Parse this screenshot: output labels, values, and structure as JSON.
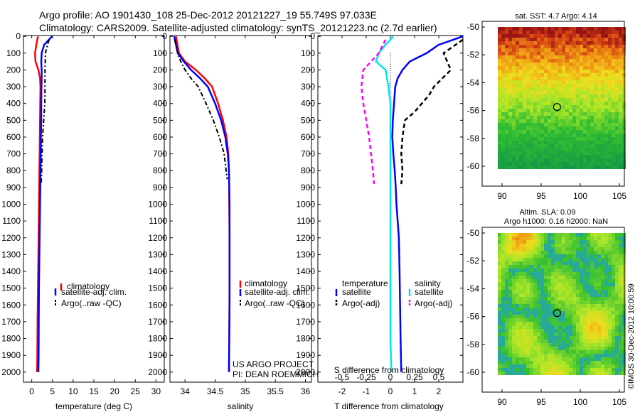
{
  "header": {
    "line1": "Argo profile: AO 1901430_108 25-Dec-2012 20121227_19 55.749S 97.033E",
    "line2": "Climatology: CARS2009. Satellite-adjusted climatology: synTS_20121223.nc (2.7d earlier)"
  },
  "depth_ticks": [
    "0",
    "100",
    "200",
    "300",
    "400",
    "500",
    "600",
    "700",
    "800",
    "900",
    "1000",
    "1100",
    "1200",
    "1300",
    "1400",
    "1500",
    "1600",
    "1700",
    "1800",
    "1900",
    "2000"
  ],
  "colors": {
    "climatology": "#ff0000",
    "satellite": "#0000ff",
    "argo": "#000000",
    "cyan": "#00e5ee",
    "magenta": "#ff00ff",
    "axis": "#000000"
  },
  "chart_data": [
    {
      "type": "line",
      "xlabel": "temperature (deg C)",
      "ylabel": "",
      "xlim": [
        -2,
        32
      ],
      "ylim": [
        2060,
        -5
      ],
      "x_ticks": [
        0,
        5,
        10,
        15,
        20,
        25,
        30
      ],
      "y_ticks": [
        0,
        100,
        200,
        300,
        400,
        500,
        600,
        700,
        800,
        900,
        1000,
        1100,
        1200,
        1300,
        1400,
        1500,
        1600,
        1700,
        1800,
        1900,
        2000
      ],
      "legend": {
        "position": "bottom-right",
        "entries": [
          "climatology",
          "satellite-adj. clim.",
          "Argo(..raw -QC)"
        ]
      },
      "series": [
        {
          "name": "climatology",
          "color": "#ff0000",
          "dash": "",
          "width": 2.5,
          "x": [
            1.5,
            1.1,
            0.8,
            0.9,
            1.6,
            2.0,
            2.1,
            2.05,
            2.0,
            1.95,
            1.9,
            1.85,
            1.8,
            1.75,
            1.7,
            1.65,
            1.6,
            1.5,
            1.45,
            1.4,
            1.35,
            1.3
          ],
          "y": [
            0,
            50,
            100,
            150,
            200,
            250,
            300,
            400,
            500,
            600,
            700,
            800,
            900,
            1000,
            1100,
            1200,
            1300,
            1500,
            1600,
            1700,
            1900,
            2000
          ]
        },
        {
          "name": "satellite-adj. clim.",
          "color": "#0000ff",
          "dash": "",
          "width": 2.5,
          "x": [
            4.9,
            3.0,
            2.4,
            2.3,
            2.4,
            2.4,
            2.35,
            2.3,
            2.3,
            2.2,
            2.15,
            2.1,
            2.05,
            2.0,
            1.95,
            1.9,
            1.8,
            1.75,
            1.7,
            1.65,
            1.6
          ],
          "y": [
            0,
            50,
            100,
            150,
            200,
            250,
            300,
            400,
            500,
            600,
            700,
            800,
            900,
            1000,
            1100,
            1200,
            1400,
            1500,
            1700,
            1900,
            2000
          ]
        },
        {
          "name": "Argo(..raw -QC)",
          "color": "#000000",
          "dash": "6,3,2,3",
          "width": 2,
          "x": [
            4.2,
            3.8,
            3.3,
            3.2,
            3.2,
            3.15,
            2.9,
            2.6,
            2.5,
            2.4,
            2.3
          ],
          "y": [
            20,
            50,
            100,
            200,
            300,
            400,
            500,
            600,
            700,
            800,
            880
          ]
        }
      ]
    },
    {
      "type": "line",
      "xlabel": "salinity",
      "ylabel": "",
      "xlim": [
        33.75,
        36.1
      ],
      "ylim": [
        2060,
        -5
      ],
      "x_ticks": [
        34,
        34.5,
        35,
        35.5,
        36
      ],
      "y_ticks": [
        0,
        100,
        200,
        300,
        400,
        500,
        600,
        700,
        800,
        900,
        1000,
        1100,
        1200,
        1300,
        1400,
        1500,
        1600,
        1700,
        1800,
        1900,
        2000
      ],
      "legend": {
        "position": "bottom-right",
        "entries": [
          "climatology",
          "satellite-adj. clim.",
          "Argo(..raw -QC)"
        ]
      },
      "series": [
        {
          "name": "climatology",
          "color": "#ff0000",
          "dash": "",
          "width": 2.5,
          "x": [
            33.85,
            33.9,
            34.0,
            34.18,
            34.33,
            34.45,
            34.55,
            34.63,
            34.69,
            34.72,
            34.73,
            34.735,
            34.74,
            34.74,
            34.735,
            34.73
          ],
          "y": [
            0,
            100,
            150,
            200,
            250,
            300,
            400,
            500,
            600,
            700,
            800,
            1000,
            1200,
            1500,
            1800,
            2000
          ]
        },
        {
          "name": "satellite-adj. clim.",
          "color": "#0000ff",
          "dash": "",
          "width": 2.5,
          "x": [
            33.82,
            33.88,
            33.98,
            34.1,
            34.25,
            34.38,
            34.5,
            34.6,
            34.67,
            34.71,
            34.73,
            34.74,
            34.74,
            34.74,
            34.73
          ],
          "y": [
            0,
            100,
            150,
            200,
            250,
            300,
            400,
            500,
            600,
            700,
            800,
            1000,
            1300,
            1600,
            2000
          ]
        },
        {
          "name": "Argo(..raw -QC)",
          "color": "#000000",
          "dash": "6,3,2,3",
          "width": 2,
          "x": [
            33.83,
            33.88,
            33.93,
            34.0,
            34.1,
            34.22,
            34.35,
            34.47,
            34.57,
            34.65,
            34.7
          ],
          "y": [
            20,
            100,
            150,
            200,
            250,
            300,
            400,
            500,
            600,
            700,
            850
          ]
        }
      ]
    },
    {
      "type": "line",
      "xlabel": "T difference from climatology",
      "xlabel_top": "S difference from climatology",
      "ylabel": "",
      "xlim": [
        -3,
        3
      ],
      "x2lim": [
        -0.75,
        0.75
      ],
      "ylim": [
        2060,
        -5
      ],
      "x_ticks": [
        -2,
        -1,
        0,
        1,
        2
      ],
      "x2_ticks": [
        "-0.5",
        "-0.25",
        "0",
        "0.25",
        "0.5"
      ],
      "y_ticks": [
        0,
        100,
        200,
        300,
        400,
        500,
        600,
        700,
        800,
        900,
        1000,
        1100,
        1200,
        1300,
        1400,
        1500,
        1600,
        1700,
        1800,
        1900,
        2000
      ],
      "legend": {
        "position": "bottom",
        "groups": [
          "temperature",
          "salinity"
        ],
        "entries": [
          "satellite",
          "Argo(-adj)",
          "satellite",
          "Argo(-adj)"
        ]
      },
      "series": [
        {
          "name": "temperature satellite",
          "color": "#0000ff",
          "dash": "",
          "width": 2.5,
          "x": [
            3.3,
            2.0,
            1.5,
            0.8,
            0.5,
            0.3,
            0.2,
            0.15,
            0.1,
            0.08,
            0.12,
            0.18,
            0.22,
            0.25,
            0.3,
            0.35,
            0.38,
            0.4,
            0.42,
            0.45
          ],
          "y": [
            0,
            50,
            100,
            150,
            200,
            250,
            300,
            400,
            500,
            600,
            700,
            800,
            900,
            1000,
            1100,
            1200,
            1400,
            1600,
            1800,
            2000
          ]
        },
        {
          "name": "temperature Argo(-adj)",
          "color": "#000000",
          "dash": "6,4",
          "width": 2.5,
          "x": [
            3.0,
            2.2,
            2.5,
            1.8,
            1.6,
            1.3,
            1.0,
            0.6,
            0.5,
            0.45,
            0.5,
            0.45
          ],
          "y": [
            20,
            100,
            200,
            300,
            350,
            400,
            450,
            500,
            600,
            700,
            800,
            880
          ]
        },
        {
          "name": "salinity satellite",
          "color": "#00e5ee",
          "dash": "",
          "width": 2.5,
          "x": [
            0.03,
            -0.05,
            -0.12,
            -0.15,
            -0.05,
            -0.02,
            0.0,
            0.0,
            0.0,
            0.0,
            0.0,
            0.0,
            0.0,
            0.0,
            0.01
          ],
          "y": [
            0,
            50,
            100,
            150,
            200,
            300,
            400,
            500,
            600,
            800,
            1000,
            1300,
            1600,
            1800,
            2000
          ]
        },
        {
          "name": "salinity Argo(-adj)",
          "color": "#ff00ff",
          "dash": "6,4",
          "width": 2.5,
          "x": [
            -0.05,
            -0.12,
            -0.2,
            -0.28,
            -0.3,
            -0.28,
            -0.25,
            -0.22,
            -0.2,
            -0.18,
            -0.17
          ],
          "y": [
            20,
            100,
            150,
            200,
            300,
            400,
            500,
            600,
            700,
            800,
            880
          ]
        }
      ]
    }
  ],
  "legend1": {
    "climatology": "climatology",
    "satellite": "satellite-adj. clim.",
    "argo": "Argo(..raw -QC)"
  },
  "legend3": {
    "temperature": "temperature",
    "salinity": "salinity",
    "t_sat": "satellite",
    "t_argo": "Argo(-adj)",
    "s_sat": "satellite",
    "s_argo": "Argo(-adj)"
  },
  "diff_top_label": "S difference from climatology",
  "project": {
    "line1": "US ARGO PROJECT",
    "line2": "PI: DEAN ROEMMICH"
  },
  "map_top": {
    "title": "sat. SST: 4.7 Argo: 4.14",
    "y_ticks": [
      "-50",
      "-52",
      "-54",
      "-56",
      "-58",
      "-60"
    ],
    "x_ticks": [
      "90",
      "95",
      "100",
      "105"
    ],
    "float_lat": -55.749,
    "float_lon": 97.033
  },
  "map_bottom": {
    "title1": "Altim. SLA: 0.09",
    "title2": "Argo h1000: 0.16 h2000: NaN",
    "y_ticks": [
      "-50",
      "-52",
      "-54",
      "-56",
      "-58",
      "-60"
    ],
    "x_ticks": [
      "90",
      "95",
      "100",
      "105"
    ],
    "float_lat": -55.749,
    "float_lon": 97.033
  },
  "footer": {
    "stamp": "©IMOS 30-Dec-2012 10:00:59"
  }
}
